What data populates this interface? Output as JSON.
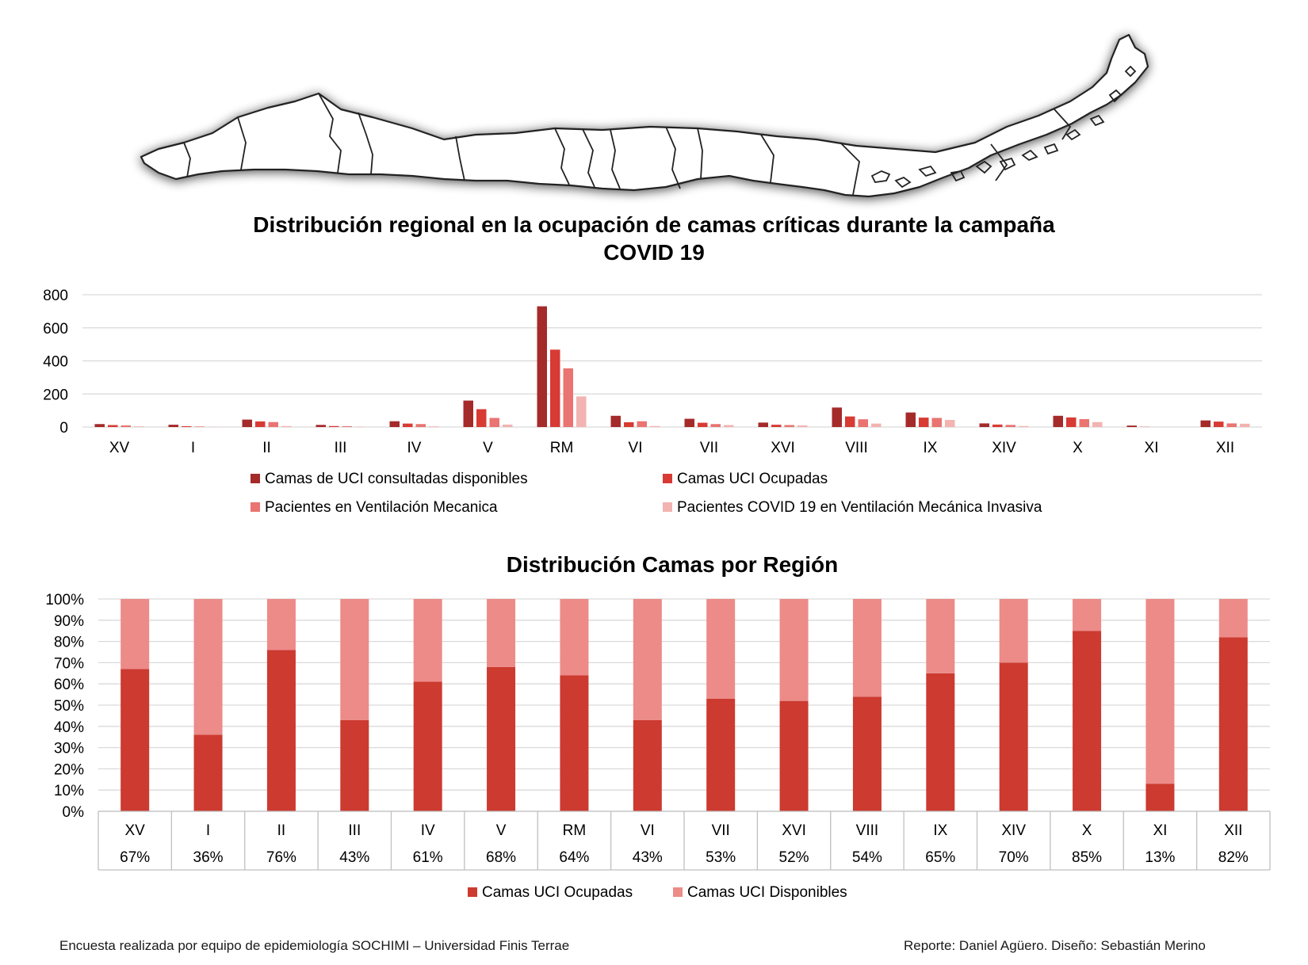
{
  "colors": {
    "dark_red": "#a52a2a",
    "red": "#d83a34",
    "salmon": "#e97471",
    "pink": "#f2b3b1",
    "stack_occupied": "#cc3a30",
    "stack_available": "#ec8b88",
    "grid": "#d9d9d9"
  },
  "map": {
    "name": "Chile regions map"
  },
  "chart_data": [
    {
      "type": "bar",
      "title": "Distribución regional en la ocupación de camas críticas durante la campaña COVID 19",
      "title_lines": [
        "Distribución regional en la ocupación de camas críticas durante la campaña",
        "COVID 19"
      ],
      "categories": [
        "XV",
        "I",
        "II",
        "III",
        "IV",
        "V",
        "RM",
        "VI",
        "VII",
        "XVI",
        "VIII",
        "IX",
        "XIV",
        "X",
        "XI",
        "XII"
      ],
      "ylim": [
        0,
        800
      ],
      "yticks": [
        0,
        200,
        400,
        600,
        800
      ],
      "grid": true,
      "legend_position": "bottom",
      "series": [
        {
          "name": "Camas de UCI consultadas disponibles",
          "values": [
            18,
            14,
            45,
            13,
            35,
            160,
            730,
            68,
            50,
            27,
            118,
            88,
            22,
            68,
            9,
            40
          ]
        },
        {
          "name": "Camas UCI Ocupadas",
          "values": [
            12,
            5,
            34,
            6,
            21,
            108,
            468,
            29,
            26,
            14,
            64,
            57,
            15,
            58,
            1,
            33
          ]
        },
        {
          "name": "Pacientes en Ventilación Mecanica",
          "values": [
            10,
            3,
            30,
            5,
            18,
            55,
            355,
            35,
            18,
            12,
            47,
            55,
            13,
            48,
            0,
            22
          ]
        },
        {
          "name": "Pacientes COVID 19 en Ventilación Mecánica Invasiva",
          "values": [
            4,
            1,
            6,
            2,
            4,
            15,
            185,
            6,
            12,
            10,
            21,
            43,
            6,
            30,
            0,
            20
          ]
        }
      ]
    },
    {
      "type": "bar",
      "stacked": true,
      "title": "Distribución Camas por Región",
      "categories": [
        "XV",
        "I",
        "II",
        "III",
        "IV",
        "V",
        "RM",
        "VI",
        "VII",
        "XVI",
        "VIII",
        "IX",
        "XIV",
        "X",
        "XI",
        "XII"
      ],
      "ylim": [
        0,
        100
      ],
      "yticks": [
        "0%",
        "10%",
        "20%",
        "30%",
        "40%",
        "50%",
        "60%",
        "70%",
        "80%",
        "90%",
        "100%"
      ],
      "grid": true,
      "legend_position": "bottom",
      "table_row": [
        "67%",
        "36%",
        "76%",
        "43%",
        "61%",
        "68%",
        "64%",
        "43%",
        "53%",
        "52%",
        "54%",
        "65%",
        "70%",
        "85%",
        "13%",
        "82%"
      ],
      "series": [
        {
          "name": "Camas UCI Ocupadas",
          "values": [
            67,
            36,
            76,
            43,
            61,
            68,
            64,
            43,
            53,
            52,
            54,
            65,
            70,
            85,
            13,
            82
          ]
        },
        {
          "name": "Camas UCI Disponibles",
          "values": [
            33,
            64,
            24,
            57,
            39,
            32,
            36,
            57,
            47,
            48,
            46,
            35,
            30,
            15,
            87,
            18
          ]
        }
      ]
    }
  ],
  "footer": {
    "left": "Encuesta realizada por equipo de epidemiología SOCHIMI – Universidad Finis Terrae",
    "right": "Reporte: Daniel Agüero. Diseño: Sebastián Merino"
  }
}
